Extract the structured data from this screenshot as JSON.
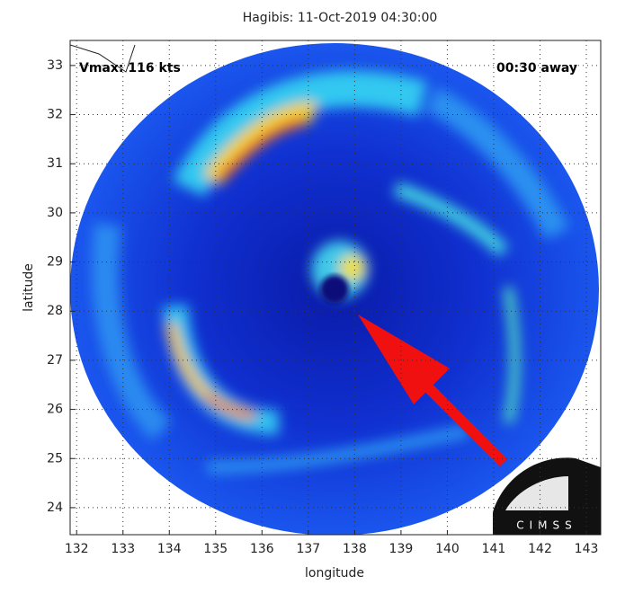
{
  "chart_data": {
    "type": "image",
    "title": "Hagibis: 11-Oct-2019 04:30:00",
    "xlabel": "longitude",
    "ylabel": "latitude",
    "xlim": [
      131.86,
      143.31
    ],
    "ylim": [
      23.45,
      33.51
    ],
    "xticks": [
      132,
      133,
      134,
      135,
      136,
      137,
      138,
      139,
      140,
      141,
      142,
      143
    ],
    "yticks": [
      24,
      25,
      26,
      27,
      28,
      29,
      30,
      31,
      32,
      33
    ],
    "grid": true,
    "annotations": [
      "Vmax: 116 kts",
      "00:30 away"
    ],
    "logo": "CIMSS"
  }
}
